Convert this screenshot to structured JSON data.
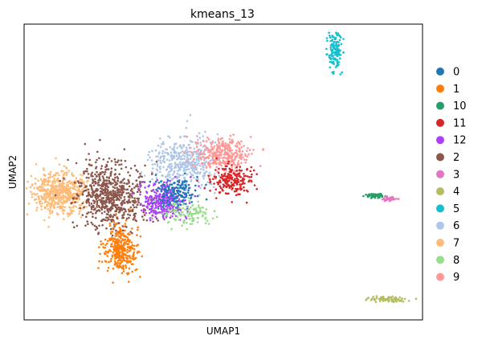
{
  "chart_data": {
    "type": "scatter",
    "title": "kmeans_13",
    "xlabel": "UMAP1",
    "ylabel": "UMAP2",
    "grid": false,
    "ticks": false,
    "legend_placement": "right-outside",
    "legend": [
      {
        "label": "0",
        "color": "#1f77b4"
      },
      {
        "label": "1",
        "color": "#ff7f0e"
      },
      {
        "label": "10",
        "color": "#279e68"
      },
      {
        "label": "11",
        "color": "#d62728"
      },
      {
        "label": "12",
        "color": "#aa40fc"
      },
      {
        "label": "2",
        "color": "#8c564b"
      },
      {
        "label": "3",
        "color": "#e377c2"
      },
      {
        "label": "4",
        "color": "#b5bd61"
      },
      {
        "label": "5",
        "color": "#17becf"
      },
      {
        "label": "6",
        "color": "#aec7e8"
      },
      {
        "label": "7",
        "color": "#ffbb78"
      },
      {
        "label": "8",
        "color": "#98df8a"
      },
      {
        "label": "9",
        "color": "#ff9896"
      }
    ],
    "clusters": [
      {
        "name": "7",
        "color": "#ffbb78",
        "cx": 0.09,
        "cy": 0.43,
        "sx": 0.035,
        "sy": 0.035,
        "n": 550
      },
      {
        "name": "2",
        "color": "#8c564b",
        "cx": 0.22,
        "cy": 0.42,
        "sx": 0.045,
        "sy": 0.055,
        "n": 650
      },
      {
        "name": "1",
        "color": "#ff7f0e",
        "cx": 0.24,
        "cy": 0.24,
        "sx": 0.022,
        "sy": 0.04,
        "n": 320
      },
      {
        "name": "6",
        "color": "#aec7e8",
        "cx": 0.4,
        "cy": 0.53,
        "sx": 0.04,
        "sy": 0.04,
        "n": 420
      },
      {
        "name": "9",
        "color": "#ff9896",
        "cx": 0.5,
        "cy": 0.56,
        "sx": 0.035,
        "sy": 0.025,
        "n": 330
      },
      {
        "name": "11",
        "color": "#d62728",
        "cx": 0.52,
        "cy": 0.47,
        "sx": 0.025,
        "sy": 0.025,
        "n": 200
      },
      {
        "name": "12",
        "color": "#aa40fc",
        "cx": 0.35,
        "cy": 0.4,
        "sx": 0.03,
        "sy": 0.03,
        "n": 300
      },
      {
        "name": "0",
        "color": "#1f77b4",
        "cx": 0.38,
        "cy": 0.43,
        "sx": 0.025,
        "sy": 0.025,
        "n": 150
      },
      {
        "name": "8",
        "color": "#98df8a",
        "cx": 0.41,
        "cy": 0.36,
        "sx": 0.035,
        "sy": 0.02,
        "n": 120
      },
      {
        "name": "5",
        "color": "#17becf",
        "cx": 0.78,
        "cy": 0.91,
        "sx": 0.009,
        "sy": 0.035,
        "n": 130
      },
      {
        "name": "10",
        "color": "#279e68",
        "cx": 0.88,
        "cy": 0.42,
        "sx": 0.012,
        "sy": 0.004,
        "n": 60
      },
      {
        "name": "3",
        "color": "#e377c2",
        "cx": 0.92,
        "cy": 0.41,
        "sx": 0.008,
        "sy": 0.004,
        "n": 40
      },
      {
        "name": "4",
        "color": "#b5bd61",
        "cx": 0.91,
        "cy": 0.07,
        "sx": 0.025,
        "sy": 0.004,
        "n": 80
      }
    ]
  }
}
